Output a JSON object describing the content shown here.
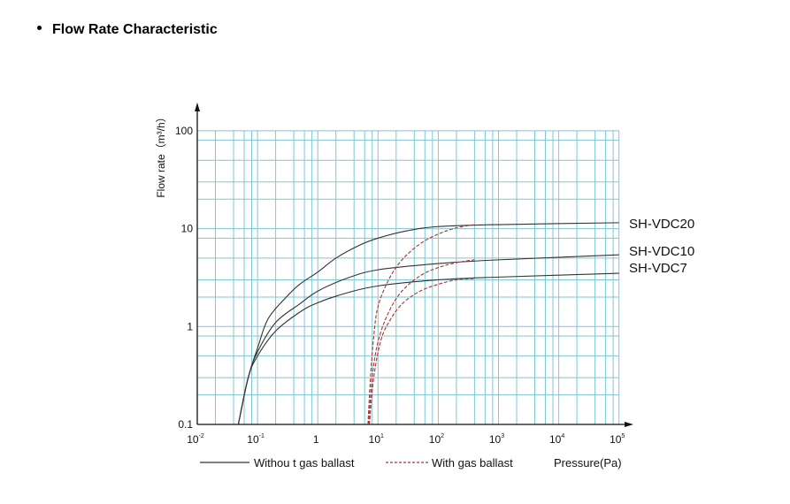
{
  "title": "Flow Rate Characteristic",
  "chart_data": {
    "type": "line",
    "title": "Flow Rate Characteristic",
    "xlabel": "Pressure(Pa)",
    "ylabel": "Flow rate（m³/h）",
    "xscale": "log",
    "yscale": "log",
    "xlim": [
      0.01,
      100000
    ],
    "ylim": [
      0.1,
      100
    ],
    "grid": true,
    "x_ticks": [
      {
        "value": 0.01,
        "base": "10",
        "exp": "-2"
      },
      {
        "value": 0.1,
        "base": "10",
        "exp": "-1"
      },
      {
        "value": 1,
        "base": "1",
        "exp": ""
      },
      {
        "value": 10,
        "base": "10",
        "exp": "1"
      },
      {
        "value": 100,
        "base": "10",
        "exp": "2"
      },
      {
        "value": 1000,
        "base": "10",
        "exp": "3"
      },
      {
        "value": 10000,
        "base": "10",
        "exp": "4"
      },
      {
        "value": 100000,
        "base": "10",
        "exp": "5"
      }
    ],
    "y_ticks": [
      {
        "value": 0.1,
        "label": "0.1"
      },
      {
        "value": 1,
        "label": "1"
      },
      {
        "value": 10,
        "label": "10"
      },
      {
        "value": 100,
        "label": "100"
      }
    ],
    "legend": {
      "placement": "bottom",
      "without": "Withou t gas ballast",
      "with": "With gas ballast"
    },
    "colors": {
      "without": "#333333",
      "with": "#b03030",
      "grid": "#7cc8d6"
    },
    "series": [
      {
        "name": "SH-VDC20",
        "ballast": false,
        "points": [
          [
            0.048,
            0.1
          ],
          [
            0.07,
            0.3
          ],
          [
            0.1,
            0.6
          ],
          [
            0.15,
            1.2
          ],
          [
            0.3,
            2
          ],
          [
            0.5,
            2.7
          ],
          [
            1,
            3.6
          ],
          [
            2,
            5
          ],
          [
            5,
            6.8
          ],
          [
            10,
            8
          ],
          [
            30,
            9.5
          ],
          [
            100,
            10.5
          ],
          [
            1000,
            11
          ],
          [
            100000,
            11.5
          ]
        ]
      },
      {
        "name": "SH-VDC10",
        "ballast": false,
        "points": [
          [
            0.048,
            0.1
          ],
          [
            0.07,
            0.3
          ],
          [
            0.1,
            0.55
          ],
          [
            0.2,
            1.1
          ],
          [
            0.5,
            1.7
          ],
          [
            1,
            2.3
          ],
          [
            3,
            3.1
          ],
          [
            10,
            3.8
          ],
          [
            100,
            4.4
          ],
          [
            1000,
            4.8
          ],
          [
            100000,
            5.4
          ]
        ]
      },
      {
        "name": "SH-VDC7",
        "ballast": false,
        "points": [
          [
            0.048,
            0.1
          ],
          [
            0.07,
            0.3
          ],
          [
            0.1,
            0.5
          ],
          [
            0.2,
            0.9
          ],
          [
            0.5,
            1.4
          ],
          [
            1,
            1.75
          ],
          [
            3,
            2.2
          ],
          [
            10,
            2.6
          ],
          [
            100,
            3
          ],
          [
            1000,
            3.2
          ],
          [
            100000,
            3.5
          ]
        ]
      },
      {
        "name": "SH-VDC20",
        "ballast": true,
        "points": [
          [
            6.8,
            0.1
          ],
          [
            7.5,
            0.3
          ],
          [
            8.5,
            0.8
          ],
          [
            10,
            1.6
          ],
          [
            15,
            3
          ],
          [
            25,
            4.8
          ],
          [
            50,
            7
          ],
          [
            100,
            8.8
          ],
          [
            200,
            10.2
          ],
          [
            400,
            11
          ]
        ]
      },
      {
        "name": "SH-VDC10",
        "ballast": true,
        "points": [
          [
            7,
            0.1
          ],
          [
            8,
            0.3
          ],
          [
            10,
            0.7
          ],
          [
            15,
            1.4
          ],
          [
            25,
            2.3
          ],
          [
            50,
            3.3
          ],
          [
            100,
            4
          ],
          [
            200,
            4.5
          ],
          [
            400,
            4.8
          ]
        ]
      },
      {
        "name": "SH-VDC7",
        "ballast": true,
        "points": [
          [
            7.2,
            0.1
          ],
          [
            8.5,
            0.3
          ],
          [
            11,
            0.7
          ],
          [
            15,
            1.1
          ],
          [
            25,
            1.7
          ],
          [
            50,
            2.3
          ],
          [
            100,
            2.7
          ],
          [
            200,
            3
          ],
          [
            400,
            3.1
          ]
        ]
      }
    ],
    "series_labels": [
      "SH-VDC20",
      "SH-VDC10",
      "SH-VDC7"
    ]
  }
}
